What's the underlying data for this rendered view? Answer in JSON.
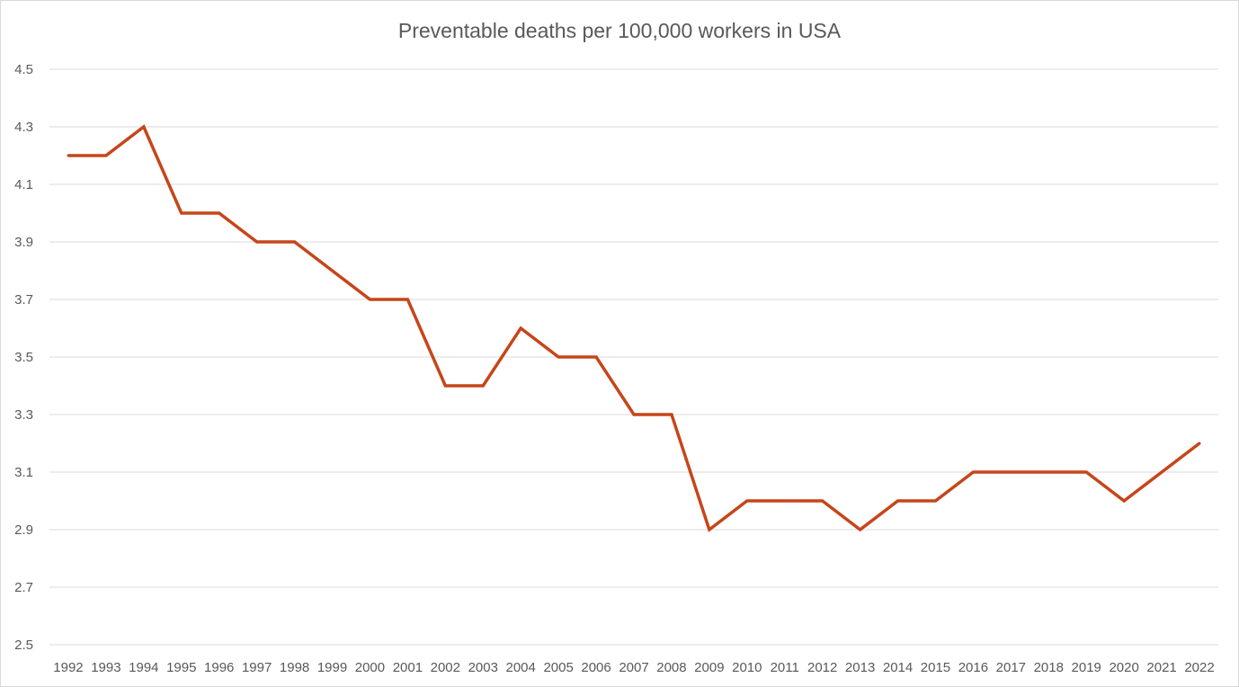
{
  "chart_data": {
    "type": "line",
    "title": "Preventable deaths per 100,000 workers in USA",
    "xlabel": "",
    "ylabel": "",
    "categories": [
      "1992",
      "1993",
      "1994",
      "1995",
      "1996",
      "1997",
      "1998",
      "1999",
      "2000",
      "2001",
      "2002",
      "2003",
      "2004",
      "2005",
      "2006",
      "2007",
      "2008",
      "2009",
      "2010",
      "2011",
      "2012",
      "2013",
      "2014",
      "2015",
      "2016",
      "2017",
      "2018",
      "2019",
      "2020",
      "2021",
      "2022"
    ],
    "series": [
      {
        "color": "#c5461a",
        "values": [
          4.2,
          4.2,
          4.3,
          4.0,
          4.0,
          3.9,
          3.9,
          3.8,
          3.7,
          3.7,
          3.4,
          3.4,
          3.6,
          3.5,
          3.5,
          3.3,
          3.3,
          2.9,
          3.0,
          3.0,
          3.0,
          2.9,
          3.0,
          3.0,
          3.1,
          3.1,
          3.1,
          3.1,
          3.0,
          3.1,
          3.2
        ]
      }
    ],
    "ylim": [
      2.5,
      4.5
    ],
    "yticks": [
      "2.5",
      "2.7",
      "2.9",
      "3.1",
      "3.3",
      "3.5",
      "3.7",
      "3.9",
      "4.1",
      "4.3",
      "4.5"
    ],
    "grid": true,
    "legend": "none"
  }
}
